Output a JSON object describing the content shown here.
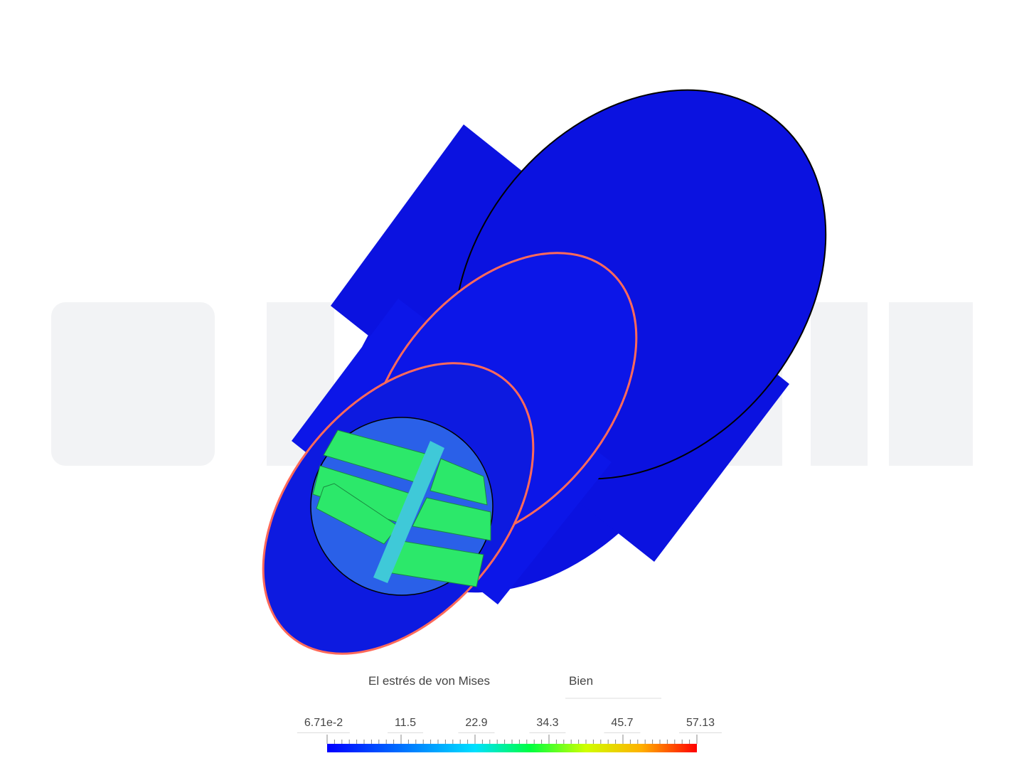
{
  "legend": {
    "title": "El estrés de von Mises",
    "quality": "Bien",
    "ticks": [
      "6.71e-2",
      "11.5",
      "22.9",
      "34.3",
      "45.7",
      "57.13"
    ]
  }
}
